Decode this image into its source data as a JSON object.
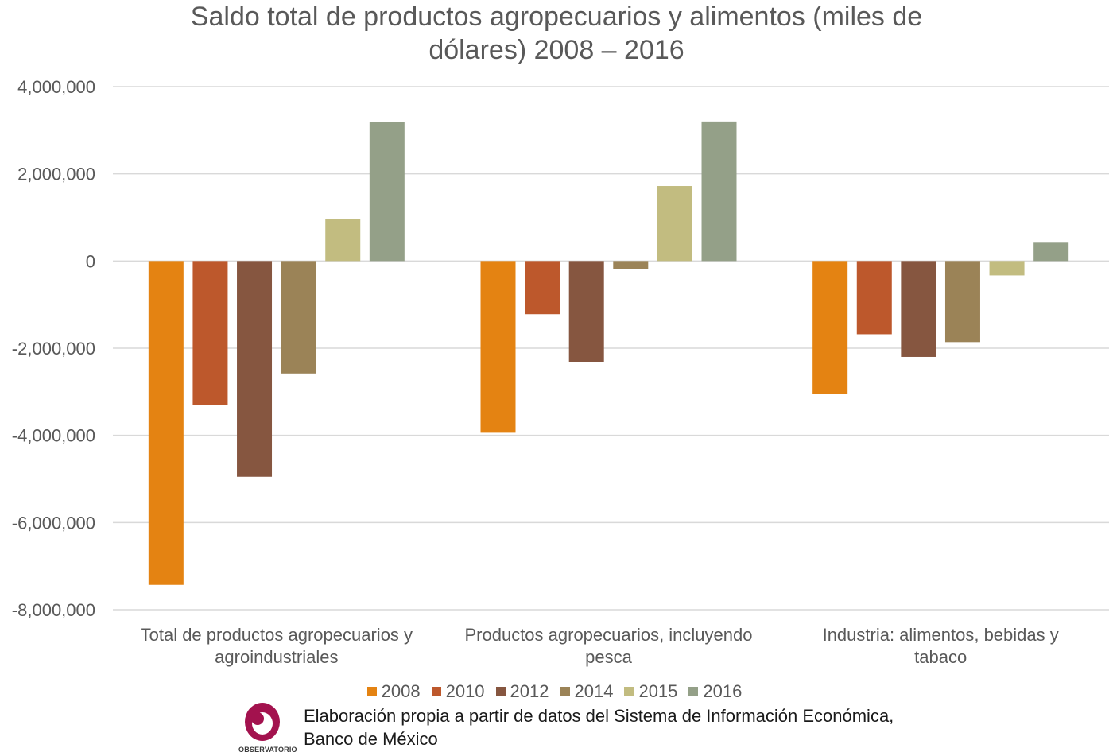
{
  "chart_data": {
    "type": "bar",
    "title_line1": "Saldo total de productos agropecuarios y alimentos (miles de",
    "title_line2": "dólares) 2008 – 2016",
    "categories": [
      [
        "Total de productos agropecuarios y",
        "agroindustriales"
      ],
      [
        "Productos agropecuarios, incluyendo",
        "pesca"
      ],
      [
        "Industria: alimentos, bebidas y",
        "tabaco"
      ]
    ],
    "series": [
      {
        "name": "2008",
        "color": "#E48312",
        "values": [
          -7430000,
          -3940000,
          -3050000
        ]
      },
      {
        "name": "2010",
        "color": "#BD582C",
        "values": [
          -3300000,
          -1220000,
          -1680000
        ]
      },
      {
        "name": "2012",
        "color": "#865640",
        "values": [
          -4950000,
          -2320000,
          -2200000
        ]
      },
      {
        "name": "2014",
        "color": "#9B8357",
        "values": [
          -2580000,
          -180000,
          -1860000
        ]
      },
      {
        "name": "2015",
        "color": "#C2BC80",
        "values": [
          960000,
          1720000,
          -330000
        ]
      },
      {
        "name": "2016",
        "color": "#94A088",
        "values": [
          3180000,
          3200000,
          420000
        ]
      }
    ],
    "ylim": [
      -8000000,
      4000000
    ],
    "yticks": [
      4000000,
      2000000,
      0,
      -2000000,
      -4000000,
      -6000000,
      -8000000
    ],
    "ytick_labels": [
      "4,000,000",
      "2,000,000",
      "0",
      "-2,000,000",
      "-4,000,000",
      "-6,000,000",
      "-8,000,000"
    ],
    "grid": true,
    "legend_position": "bottom"
  },
  "source": {
    "logo_label": "OBSERVATORIO",
    "line1": "Elaboración propia a partir de datos del Sistema de Información Económica,",
    "line2": "Banco de México"
  }
}
